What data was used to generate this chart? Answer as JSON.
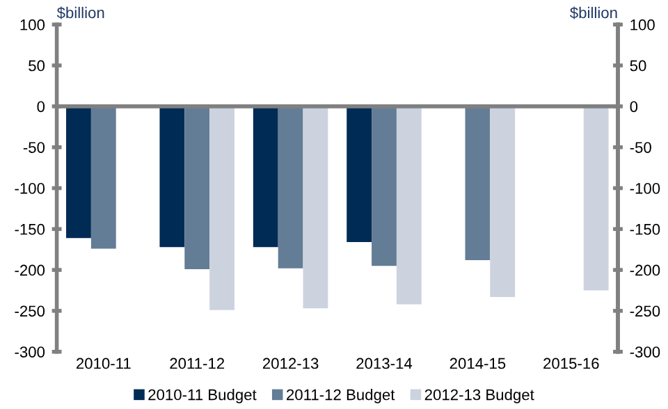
{
  "chart_data": {
    "type": "bar",
    "ylabel": "$billion",
    "y2label": "$billion",
    "categories": [
      "2010-11",
      "2011-12",
      "2012-13",
      "2013-14",
      "2014-15",
      "2015-16"
    ],
    "series": [
      {
        "name": "2010-11 Budget",
        "color": "#002b55",
        "values": [
          -161,
          -172,
          -172,
          -166,
          null,
          null
        ]
      },
      {
        "name": "2011-12 Budget",
        "color": "#647d96",
        "values": [
          -174,
          -199,
          -198,
          -195,
          -188,
          null
        ]
      },
      {
        "name": "2012-13 Budget",
        "color": "#ccd3de",
        "values": [
          null,
          -249,
          -247,
          -242,
          -233,
          -225
        ]
      }
    ],
    "ylim": [
      -300,
      100
    ],
    "yticks": [
      -300,
      -250,
      -200,
      -150,
      -100,
      -50,
      0,
      50,
      100
    ],
    "y2lim": [
      -300,
      100
    ],
    "y2ticks": [
      -300,
      -250,
      -200,
      -150,
      -100,
      -50,
      0,
      50,
      100
    ],
    "legend": "bottom"
  }
}
